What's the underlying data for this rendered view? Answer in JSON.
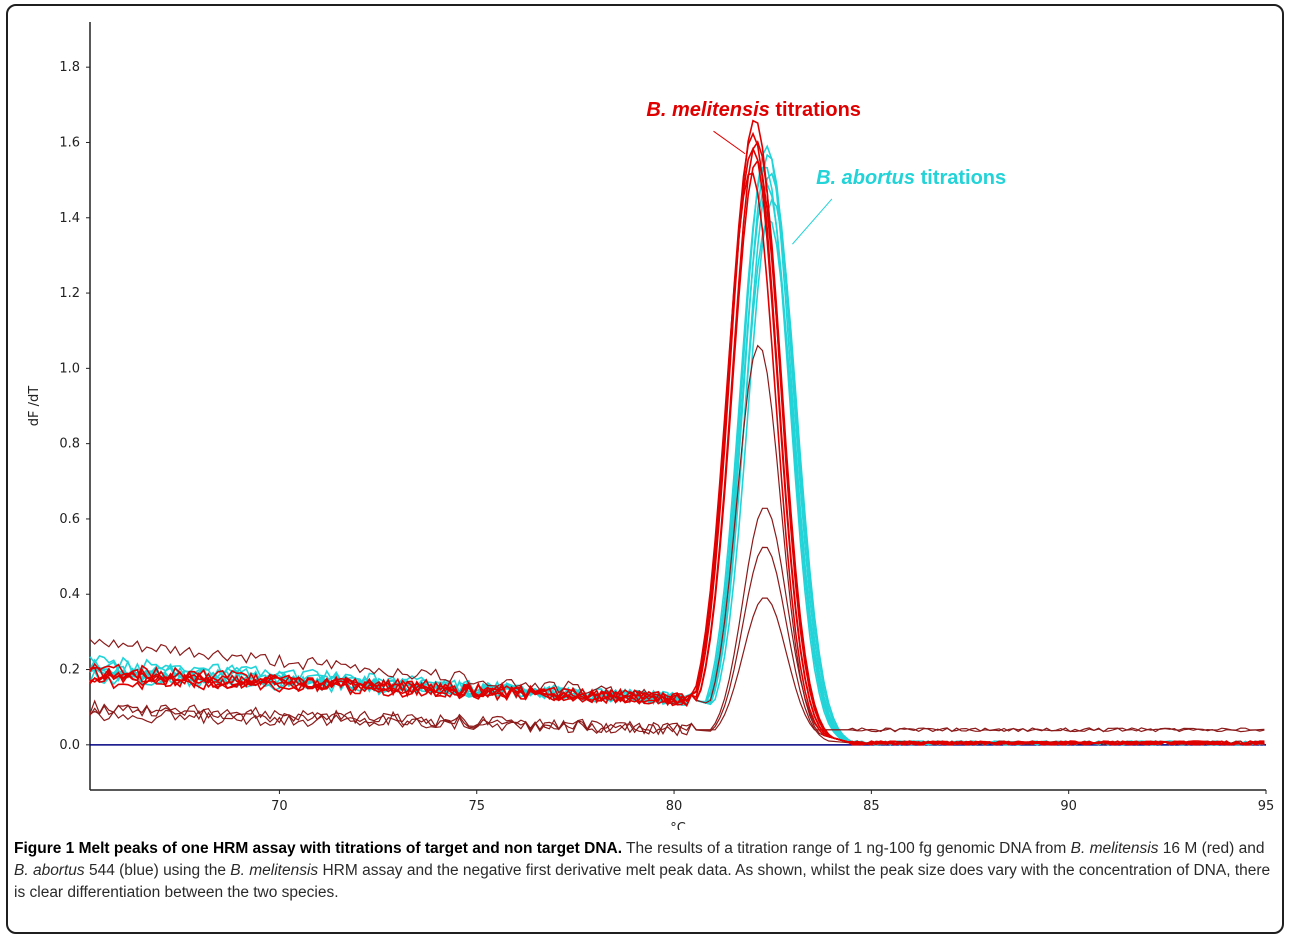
{
  "chart_data": {
    "type": "line",
    "xlabel": "°C",
    "ylabel": "dF /dT",
    "xlim": [
      65.2,
      95
    ],
    "ylim": [
      -0.12,
      1.92
    ],
    "x_ticks": [
      "70",
      "75",
      "80",
      "85",
      "90",
      "95"
    ],
    "y_ticks": [
      "0.0",
      "0.2",
      "0.4",
      "0.6",
      "0.8",
      "1.0",
      "1.2",
      "1.4",
      "1.6",
      "1.8"
    ],
    "colors": {
      "melitensis": "#e00000",
      "melitensis_low": "#8b1a1a",
      "abortus": "#22d3d8",
      "baseline": "#000080"
    },
    "annotations": [
      {
        "text_species": "B. melitensis",
        "text_rest": "titrations",
        "color": "#e00000",
        "x": 79.3,
        "y": 1.67
      },
      {
        "text_species": "B. abortus",
        "text_rest": "titrations",
        "color": "#22d3d8",
        "x": 83.6,
        "y": 1.49
      }
    ],
    "series": [
      {
        "group": "melitensis",
        "peak_x": 82.05,
        "peak_y": 1.74,
        "base_start": 0.19
      },
      {
        "group": "melitensis",
        "peak_x": 82.0,
        "peak_y": 1.7,
        "base_start": 0.18
      },
      {
        "group": "melitensis",
        "peak_x": 82.1,
        "peak_y": 1.68,
        "base_start": 0.2
      },
      {
        "group": "melitensis",
        "peak_x": 82.0,
        "peak_y": 1.66,
        "base_start": 0.17
      },
      {
        "group": "melitensis",
        "peak_x": 82.1,
        "peak_y": 1.63,
        "base_start": 0.19
      },
      {
        "group": "melitensis",
        "peak_x": 81.95,
        "peak_y": 1.6,
        "base_start": 0.18
      },
      {
        "group": "abortus",
        "peak_x": 82.35,
        "peak_y": 1.67,
        "base_start": 0.21
      },
      {
        "group": "abortus",
        "peak_x": 82.4,
        "peak_y": 1.65,
        "base_start": 0.2
      },
      {
        "group": "abortus",
        "peak_x": 82.3,
        "peak_y": 1.62,
        "base_start": 0.19
      },
      {
        "group": "abortus",
        "peak_x": 82.45,
        "peak_y": 1.6,
        "base_start": 0.22
      },
      {
        "group": "abortus",
        "peak_x": 82.35,
        "peak_y": 1.57,
        "base_start": 0.18
      },
      {
        "group": "abortus",
        "peak_x": 82.5,
        "peak_y": 1.53,
        "base_start": 0.2
      },
      {
        "group": "abortus",
        "peak_x": 82.4,
        "peak_y": 1.48,
        "base_start": 0.19
      },
      {
        "group": "melitensis_low",
        "peak_x": 82.15,
        "peak_y": 1.14,
        "base_start": 0.27
      },
      {
        "group": "melitensis_low",
        "peak_x": 82.3,
        "peak_y": 0.72,
        "base_start": 0.1
      },
      {
        "group": "melitensis_low",
        "peak_x": 82.3,
        "peak_y": 0.62,
        "base_start": 0.09
      },
      {
        "group": "melitensis_low",
        "peak_x": 82.3,
        "peak_y": 0.48,
        "base_start": 0.08
      }
    ]
  },
  "caption": {
    "title": "Figure 1 Melt peaks of one HRM assay with titrations of target and non target DNA.",
    "p1": " The results of a titration range of 1 ng-100 fg genomic DNA from ",
    "sp1": "B. melitensis",
    "p2": " 16 M (red) and ",
    "sp2": "B. abortus",
    "p3": " 544 (blue) using the ",
    "sp3": "B. melitensis",
    "p4": " HRM assay and the negative first derivative melt peak data. As shown, whilst the peak size does vary with the concentration of DNA, there is clear differentiation between the two species."
  }
}
